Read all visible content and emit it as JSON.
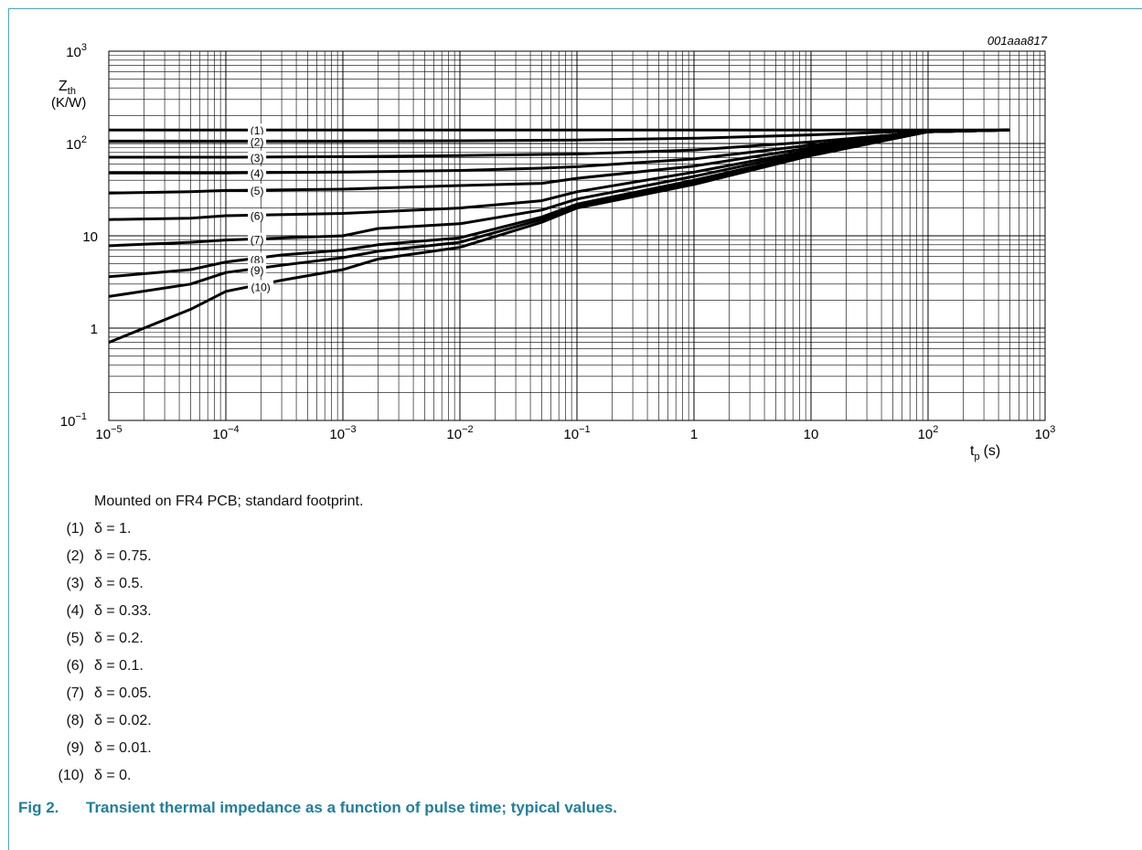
{
  "chart_data": {
    "type": "line",
    "id_label": "001aaa817",
    "ylabel_main": "Z",
    "ylabel_sub": "th",
    "ylabel_unit": "(K/W)",
    "xlabel_main": "t",
    "xlabel_sub": "p",
    "xlabel_unit": "(s)",
    "x_scale": "log",
    "y_scale": "log",
    "xlim": [
      1e-05,
      1000
    ],
    "ylim": [
      0.1,
      1000
    ],
    "grid": true,
    "x_ticks": [
      {
        "value": 1e-05,
        "base": "10",
        "exp": "−5"
      },
      {
        "value": 0.0001,
        "base": "10",
        "exp": "−4"
      },
      {
        "value": 0.001,
        "base": "10",
        "exp": "−3"
      },
      {
        "value": 0.01,
        "base": "10",
        "exp": "−2"
      },
      {
        "value": 0.1,
        "base": "10",
        "exp": "−1"
      },
      {
        "value": 1,
        "base": "1",
        "exp": ""
      },
      {
        "value": 10,
        "base": "10",
        "exp": ""
      },
      {
        "value": 100,
        "base": "10",
        "exp": "2"
      },
      {
        "value": 1000,
        "base": "10",
        "exp": "3"
      }
    ],
    "y_ticks": [
      {
        "value": 0.1,
        "base": "10",
        "exp": "−1"
      },
      {
        "value": 1,
        "base": "1",
        "exp": ""
      },
      {
        "value": 10,
        "base": "10",
        "exp": ""
      },
      {
        "value": 100,
        "base": "10",
        "exp": "2"
      },
      {
        "value": 1000,
        "base": "10",
        "exp": "3"
      }
    ],
    "series": [
      {
        "name": "(1)",
        "label_x": 0.00016,
        "x": [
          1e-05,
          1,
          10,
          100,
          500
        ],
        "y": [
          140,
          140,
          140,
          140,
          140
        ]
      },
      {
        "name": "(2)",
        "label_x": 0.00016,
        "x": [
          1e-05,
          0.0001,
          0.001,
          0.01,
          0.1,
          1,
          10,
          100,
          500
        ],
        "y": [
          106,
          106,
          106,
          107,
          109,
          114,
          124,
          138,
          140
        ]
      },
      {
        "name": "(3)",
        "label_x": 0.00016,
        "x": [
          1e-05,
          0.0001,
          0.001,
          0.01,
          0.1,
          1,
          10,
          100,
          500
        ],
        "y": [
          71,
          71,
          72,
          74,
          77,
          85,
          104,
          134,
          140
        ]
      },
      {
        "name": "(4)",
        "label_x": 0.00016,
        "x": [
          1e-05,
          0.0001,
          0.001,
          0.01,
          0.05,
          0.1,
          1,
          10,
          100,
          500
        ],
        "y": [
          48,
          48,
          49,
          51,
          54,
          56,
          68,
          96,
          134,
          140
        ]
      },
      {
        "name": "(5)",
        "label_x": 0.00016,
        "x": [
          1e-05,
          5e-05,
          0.0001,
          0.001,
          0.01,
          0.05,
          0.1,
          1,
          10,
          100,
          500
        ],
        "y": [
          29,
          30,
          31,
          32,
          35,
          37,
          42,
          57,
          90,
          134,
          140
        ]
      },
      {
        "name": "(6)",
        "label_x": 0.00016,
        "x": [
          1e-05,
          5e-05,
          0.0001,
          0.001,
          0.01,
          0.05,
          0.1,
          1,
          10,
          100,
          500
        ],
        "y": [
          15,
          15.5,
          16.5,
          17.5,
          20,
          24,
          30,
          49,
          85,
          134,
          140
        ]
      },
      {
        "name": "(7)",
        "label_x": 0.00016,
        "x": [
          1e-05,
          5e-05,
          0.0001,
          0.001,
          0.002,
          0.01,
          0.05,
          0.1,
          1,
          10,
          100,
          500
        ],
        "y": [
          7.8,
          8.5,
          9,
          10,
          12,
          13.5,
          19,
          25,
          44,
          82,
          134,
          140
        ]
      },
      {
        "name": "(8)",
        "label_x": 0.00016,
        "x": [
          1e-05,
          5e-05,
          0.0001,
          0.0003,
          0.001,
          0.002,
          0.01,
          0.05,
          0.1,
          1,
          10,
          100,
          500
        ],
        "y": [
          3.6,
          4.3,
          5.2,
          6.2,
          7,
          8,
          9.5,
          16,
          22,
          40,
          78,
          134,
          140
        ]
      },
      {
        "name": "(9)",
        "label_x": 0.00016,
        "x": [
          1e-05,
          5e-05,
          0.0001,
          0.0003,
          0.001,
          0.002,
          0.01,
          0.05,
          0.1,
          1,
          10,
          100,
          500
        ],
        "y": [
          2.2,
          3,
          4,
          4.8,
          5.8,
          6.8,
          8.5,
          15,
          21,
          38,
          76,
          134,
          140
        ]
      },
      {
        "name": "(10)",
        "label_x": 0.00016,
        "x": [
          1e-05,
          5e-05,
          0.0001,
          0.0003,
          0.001,
          0.002,
          0.01,
          0.05,
          0.1,
          1,
          10,
          100,
          500
        ],
        "y": [
          0.7,
          1.6,
          2.5,
          3.3,
          4.3,
          5.6,
          7.5,
          14,
          20,
          36,
          74,
          134,
          140
        ]
      }
    ]
  },
  "notes": {
    "mount": "Mounted on FR4 PCB; standard footprint.",
    "items": [
      {
        "num": "(1)",
        "text": "δ = 1."
      },
      {
        "num": "(2)",
        "text": "δ = 0.75."
      },
      {
        "num": "(3)",
        "text": "δ = 0.5."
      },
      {
        "num": "(4)",
        "text": "δ = 0.33."
      },
      {
        "num": "(5)",
        "text": "δ = 0.2."
      },
      {
        "num": "(6)",
        "text": "δ = 0.1."
      },
      {
        "num": "(7)",
        "text": "δ = 0.05."
      },
      {
        "num": "(8)",
        "text": "δ = 0.02."
      },
      {
        "num": "(9)",
        "text": "δ = 0.01."
      },
      {
        "num": "(10)",
        "text": "δ = 0."
      }
    ]
  },
  "caption": {
    "fig": "Fig 2.",
    "text": "Transient thermal impedance as a function of pulse time; typical values."
  },
  "colors": {
    "frame": "#4aa3c8",
    "caption": "#1f7f9f",
    "grid": "#000000",
    "curve": "#000000"
  }
}
